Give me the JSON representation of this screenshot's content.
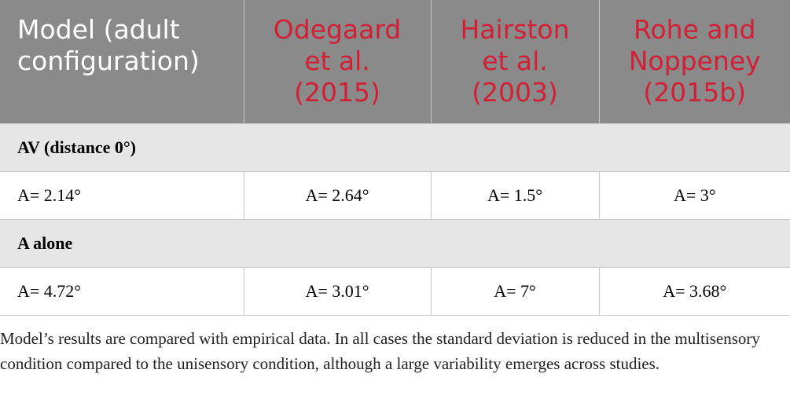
{
  "table": {
    "header": [
      [
        "Model (adult",
        "configuration)"
      ],
      [
        "Odegaard",
        "et al.",
        "(2015)"
      ],
      [
        "Hairston",
        "et al.",
        "(2003)"
      ],
      [
        "Rohe and",
        "Noppeney",
        "(2015b)"
      ]
    ],
    "sections": [
      {
        "title": "AV (distance 0°)",
        "row": [
          "A= 2.14°",
          "A= 2.64°",
          "A= 1.5°",
          "A= 3°"
        ]
      },
      {
        "title": "A alone",
        "row": [
          "A= 4.72°",
          "A= 3.01°",
          "A= 7°",
          "A= 3.68°"
        ]
      }
    ]
  },
  "caption": "Model’s results are compared with empirical data. In all cases the standard deviation is reduced in the multisensory condition compared to the unisensory condition, although a large variability emerges across studies."
}
